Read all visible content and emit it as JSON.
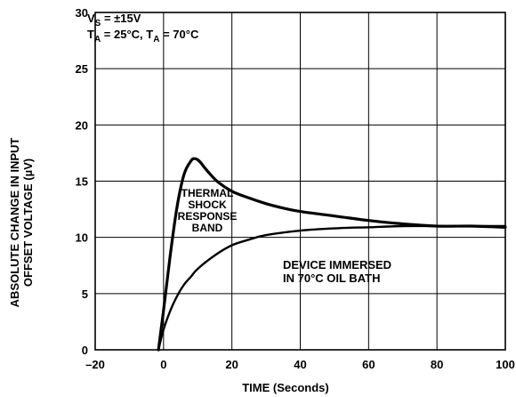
{
  "chart_data": {
    "type": "line",
    "title": "",
    "xlabel": "TIME (Seconds)",
    "ylabel_lines": [
      "ABSOLUTE CHANGE IN INPUT",
      "OFFSET VOLTAGE (µV)"
    ],
    "xlim": [
      -20,
      100
    ],
    "ylim": [
      0,
      30
    ],
    "xticks": [
      -20,
      0,
      20,
      40,
      60,
      80,
      100
    ],
    "xtick_labels": [
      "–20",
      "0",
      "20",
      "40",
      "60",
      "80",
      "100"
    ],
    "yticks": [
      0,
      5,
      10,
      15,
      20,
      25,
      30
    ],
    "ytick_labels": [
      "0",
      "5",
      "10",
      "15",
      "20",
      "25",
      "30"
    ],
    "grid": true,
    "conditions": {
      "supply": {
        "prefix": "V",
        "sub": "S",
        "text": " = ±15V"
      },
      "temps": [
        {
          "prefix": "T",
          "sub": "A",
          "text": " = 25°C, "
        },
        {
          "prefix": "T",
          "sub": "A",
          "text": " = 70°C"
        }
      ]
    },
    "band_label": [
      "THERMAL",
      "SHOCK",
      "RESPONSE",
      "BAND"
    ],
    "device_label": [
      "DEVICE IMMERSED",
      "IN 70°C OIL BATH"
    ],
    "series": [
      {
        "x": [
          -1.5,
          0,
          2,
          4,
          6,
          8,
          9,
          10,
          11,
          12,
          14,
          16,
          20,
          25,
          30,
          35,
          40,
          50,
          60,
          70,
          80,
          90,
          100
        ],
        "values": [
          0,
          3.5,
          8.5,
          12.8,
          15.6,
          16.8,
          17.0,
          16.9,
          16.6,
          16.2,
          15.5,
          14.9,
          14.1,
          13.5,
          13.0,
          12.6,
          12.3,
          11.9,
          11.5,
          11.2,
          11.0,
          11.0,
          10.9
        ]
      },
      {
        "x": [
          -1.5,
          0,
          2,
          4,
          6,
          8,
          10,
          15,
          20,
          25,
          30,
          40,
          50,
          60,
          70,
          80,
          90,
          100
        ],
        "values": [
          0,
          1.8,
          3.5,
          4.8,
          5.8,
          6.5,
          7.2,
          8.4,
          9.3,
          9.8,
          10.2,
          10.6,
          10.8,
          10.9,
          11.0,
          11.0,
          11.0,
          11.0
        ]
      }
    ]
  }
}
